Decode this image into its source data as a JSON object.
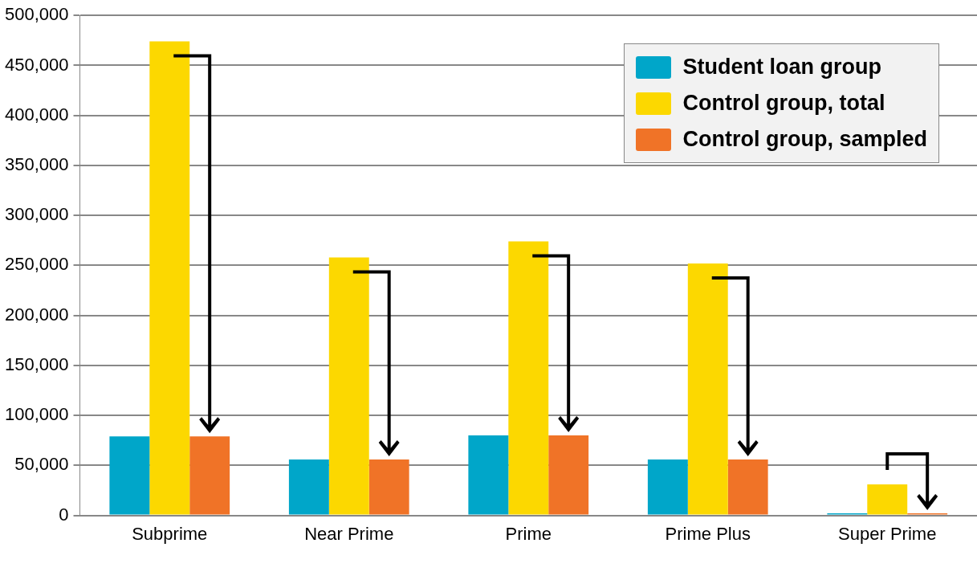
{
  "chart_data": {
    "type": "bar",
    "categories": [
      "Subprime",
      "Near Prime",
      "Prime",
      "Prime Plus",
      "Super Prime"
    ],
    "series": [
      {
        "name": "Student loan group",
        "color": "#00a6c9",
        "values": [
          79000,
          56000,
          80000,
          56000,
          2000
        ]
      },
      {
        "name": "Control group, total",
        "color": "#fcd800",
        "values": [
          474000,
          258000,
          274000,
          252000,
          31000
        ]
      },
      {
        "name": "Control group, sampled",
        "color": "#f07327",
        "values": [
          79000,
          56000,
          80000,
          56000,
          2000
        ]
      }
    ],
    "ylim": [
      0,
      500000
    ],
    "yticks": [
      0,
      {
        "value": 50000,
        "label": "50,000"
      },
      {
        "value": 100000,
        "label": "100,000"
      },
      {
        "value": 150000,
        "label": "150,000"
      },
      {
        "value": 200000,
        "label": "200,000"
      },
      {
        "value": 250000,
        "label": "250,000"
      },
      {
        "value": 300000,
        "label": "300,000"
      },
      {
        "value": 350000,
        "label": "350,000"
      },
      {
        "value": 400000,
        "label": "400,000"
      },
      {
        "value": 450000,
        "label": "450,000"
      },
      {
        "value": 500000,
        "label": "500,000"
      }
    ],
    "grid": "y",
    "legend": "top right"
  }
}
